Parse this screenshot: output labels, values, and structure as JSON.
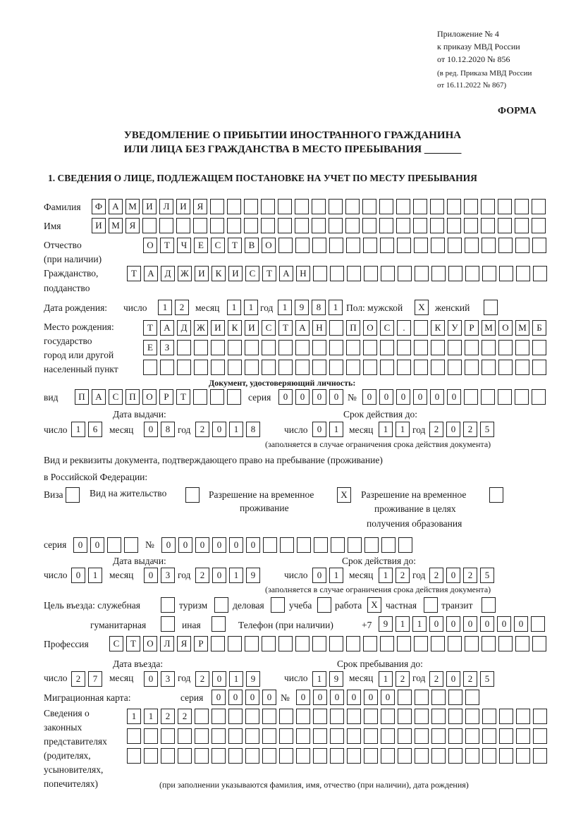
{
  "header": {
    "appendix": "Приложение № 4",
    "order": "к приказу МВД России",
    "order_date": "от 10.12.2020 № 856",
    "edition1": "(в ред. Приказа МВД России",
    "edition2": "от 16.11.2022 № 867)",
    "form_label": "ФОРМА",
    "title1": "УВЕДОМЛЕНИЕ О ПРИБЫТИИ ИНОСТРАННОГО ГРАЖДАНИНА",
    "title2": "ИЛИ ЛИЦА БЕЗ ГРАЖДАНСТВА В МЕСТО ПРЕБЫВАНИЯ _______",
    "section1": "1. СВЕДЕНИЯ О ЛИЦЕ, ПОДЛЕЖАЩЕМ ПОСТАНОВКЕ НА УЧЕТ ПО МЕСТУ ПРЕБЫВАНИЯ"
  },
  "labels": {
    "surname": "Фамилия",
    "name": "Имя",
    "patronymic1": "Отчество",
    "patronymic2": "(при наличии)",
    "citizenship1": "Гражданство,",
    "citizenship2": "подданство",
    "birth_date": "Дата рождения:",
    "day": "число",
    "month": "месяц",
    "year": "год",
    "sex_male": "Пол: мужской",
    "sex_female": "женский",
    "birth_place1": "Место рождения:",
    "birth_place2": "государство",
    "birth_place3": "город или другой",
    "birth_place4": "населенный пункт",
    "id_doc": "Документ, удостоверяющий личность:",
    "kind": "вид",
    "series": "серия",
    "number": "№",
    "issue_date": "Дата выдачи:",
    "valid_until": "Срок действия до:",
    "validity_note": "(заполняется в случае ограничения срока действия документа)",
    "right_doc1": "Вид и реквизиты документа, подтверждающего право на пребывание (проживание)",
    "right_doc2": "в Российской Федерации:",
    "visa": "Виза",
    "residence_permit": "Вид на жительство",
    "temp_permit1": "Разрешение на временное",
    "temp_permit2": "проживание",
    "edu_permit1": "Разрешение на временное",
    "edu_permit2": "проживание в целях",
    "edu_permit3": "получения образования",
    "purpose": "Цель въезда: служебная",
    "tourism": "туризм",
    "business": "деловая",
    "study": "учеба",
    "work": "работа",
    "private": "частная",
    "transit": "транзит",
    "humanitarian": "гуманитарная",
    "other": "иная",
    "phone": "Телефон (при наличии)",
    "phone_prefix": "+7",
    "profession": "Профессия",
    "entry_date": "Дата въезда:",
    "stay_until": "Срок пребывания до:",
    "migration_card": "Миграционная карта:",
    "reps1": "Сведения о",
    "reps2": "законных",
    "reps3": "представителях",
    "reps4": "(родителях,",
    "reps5": "усыновителях,",
    "reps6": "попечителях)",
    "reps_note": "(при заполнении указываются фамилия, имя, отчество (при наличии), дата рождения)"
  },
  "fields": {
    "surname": "ФАМИЛИЯ",
    "name": "ИМЯ",
    "patronymic": "ОТЧЕСТВО",
    "citizenship": "ТАДЖИКИСТАН",
    "birth_day": "12",
    "birth_month": "11",
    "birth_year": "1981",
    "sex_male": "X",
    "sex_female": "",
    "birth_place_1": "ТАДЖИКИСТАН ПОС. КУРМОМБ",
    "birth_place_2": "ЕЗ",
    "birth_place_3": "",
    "id_kind": "ПАСПОРТ",
    "id_series": "0000",
    "id_number": "000000",
    "id_issue_day": "16",
    "id_issue_month": "08",
    "id_issue_year": "2018",
    "id_valid_day": "01",
    "id_valid_month": "11",
    "id_valid_year": "2025",
    "visa": "",
    "residence_permit": "",
    "temp_permit": "X",
    "edu_permit": "",
    "right_series": "00",
    "right_number": "000000",
    "right_issue_day": "01",
    "right_issue_month": "03",
    "right_issue_year": "2019",
    "right_valid_day": "01",
    "right_valid_month": "12",
    "right_valid_year": "2025",
    "purpose_official": "",
    "purpose_tourism": "",
    "purpose_business": "",
    "purpose_study": "",
    "purpose_work": "X",
    "purpose_private": "",
    "purpose_transit": "",
    "purpose_humanitarian": "",
    "purpose_other": "",
    "phone": "911000000",
    "profession": "СТОЛЯР",
    "entry_day": "27",
    "entry_month": "03",
    "entry_year": "2019",
    "stay_day": "19",
    "stay_month": "12",
    "stay_year": "2025",
    "mc_series": "0000",
    "mc_number": "000000",
    "reps_1": "1122",
    "reps_2": "",
    "reps_3": ""
  }
}
